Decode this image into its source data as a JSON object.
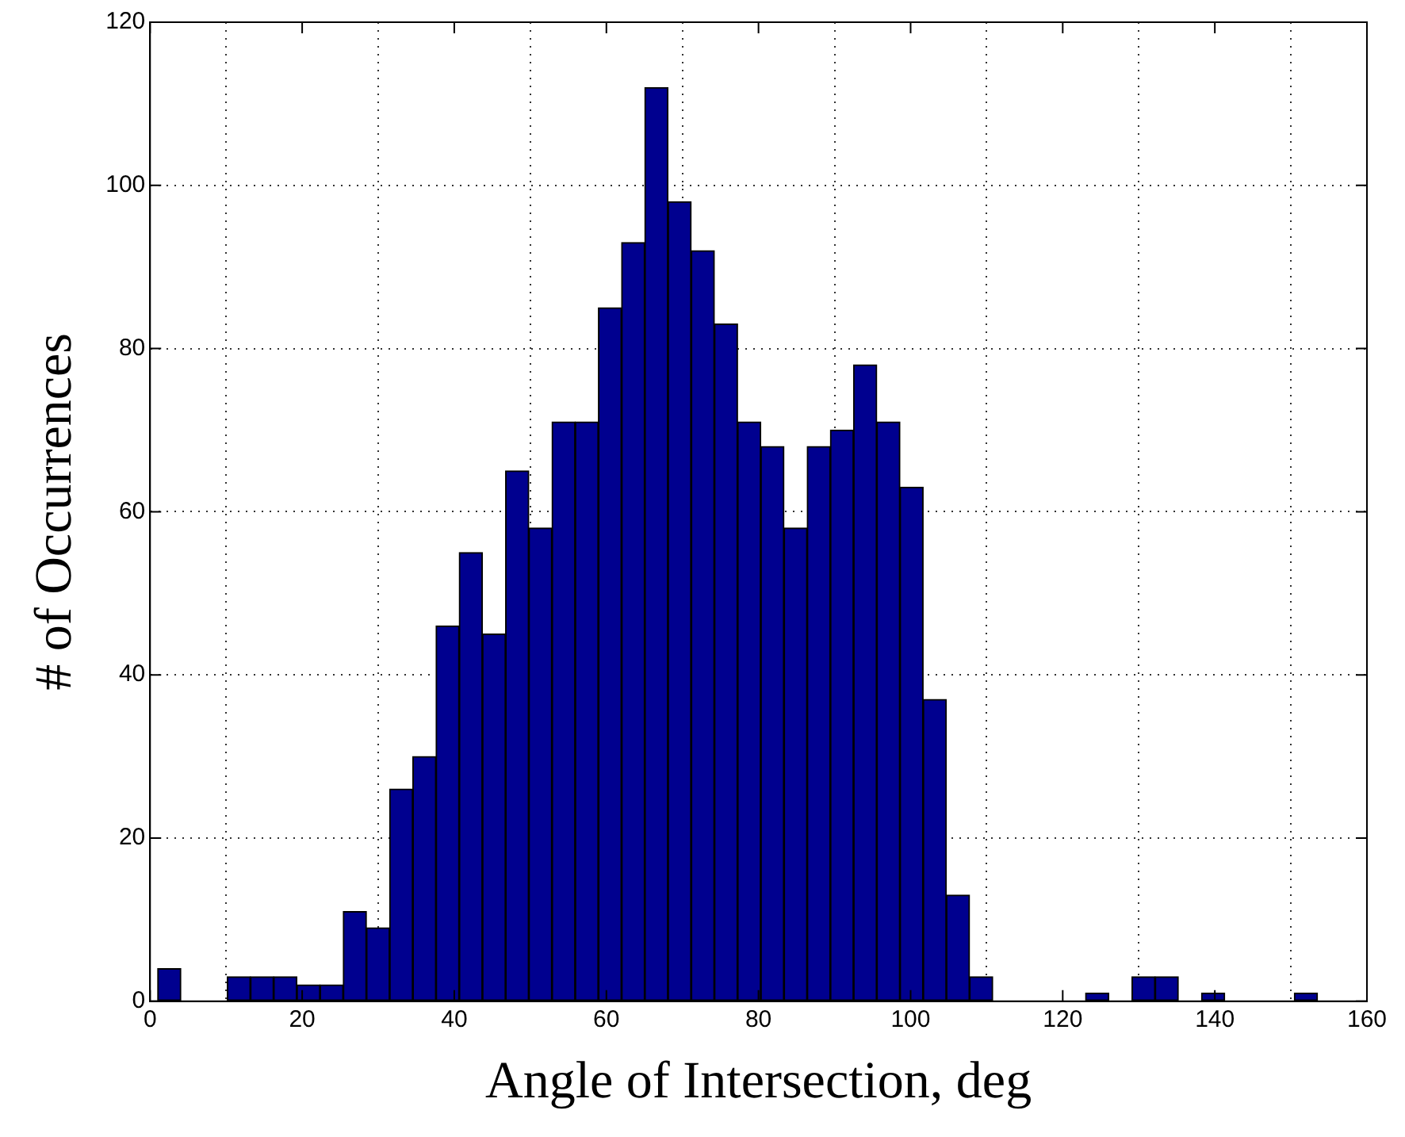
{
  "chart_data": {
    "type": "histogram",
    "xlabel": "Angle of Intersection, deg",
    "ylabel": "# of Occurrences",
    "color": "#00008f",
    "bins": [
      1,
      4.05,
      7.1,
      10.15,
      13.2,
      16.25,
      19.3,
      22.35,
      25.4,
      28.45,
      31.5,
      34.55,
      37.6,
      40.65,
      43.7,
      46.75,
      49.8,
      52.85,
      55.9,
      58.95,
      62,
      65.05,
      68.1,
      71.15,
      74.2,
      77.25,
      80.3,
      83.35,
      86.4,
      89.45,
      92.5,
      95.55,
      98.6,
      101.65,
      104.7,
      107.75,
      110.8,
      113.85,
      116.9,
      119.95,
      123,
      126.05,
      129.1,
      132.15,
      135.2,
      138.25,
      141.3,
      144.35,
      147.4,
      150.45,
      153.5
    ],
    "values": [
      4,
      0,
      0,
      3,
      3,
      3,
      2,
      2,
      11,
      9,
      26,
      30,
      46,
      55,
      45,
      65,
      58,
      71,
      71,
      85,
      93,
      112,
      98,
      92,
      83,
      71,
      68,
      58,
      68,
      70,
      78,
      71,
      63,
      37,
      13,
      3,
      0,
      0,
      0,
      0,
      1,
      0,
      3,
      3,
      0,
      1,
      0,
      0,
      0,
      1
    ],
    "xlim": [
      0,
      160
    ],
    "xticks": [
      0,
      20,
      40,
      60,
      80,
      100,
      120,
      140,
      160
    ],
    "ylim": [
      0,
      120
    ],
    "yticks": [
      0,
      20,
      40,
      60,
      80,
      100,
      120
    ],
    "grid": true
  }
}
